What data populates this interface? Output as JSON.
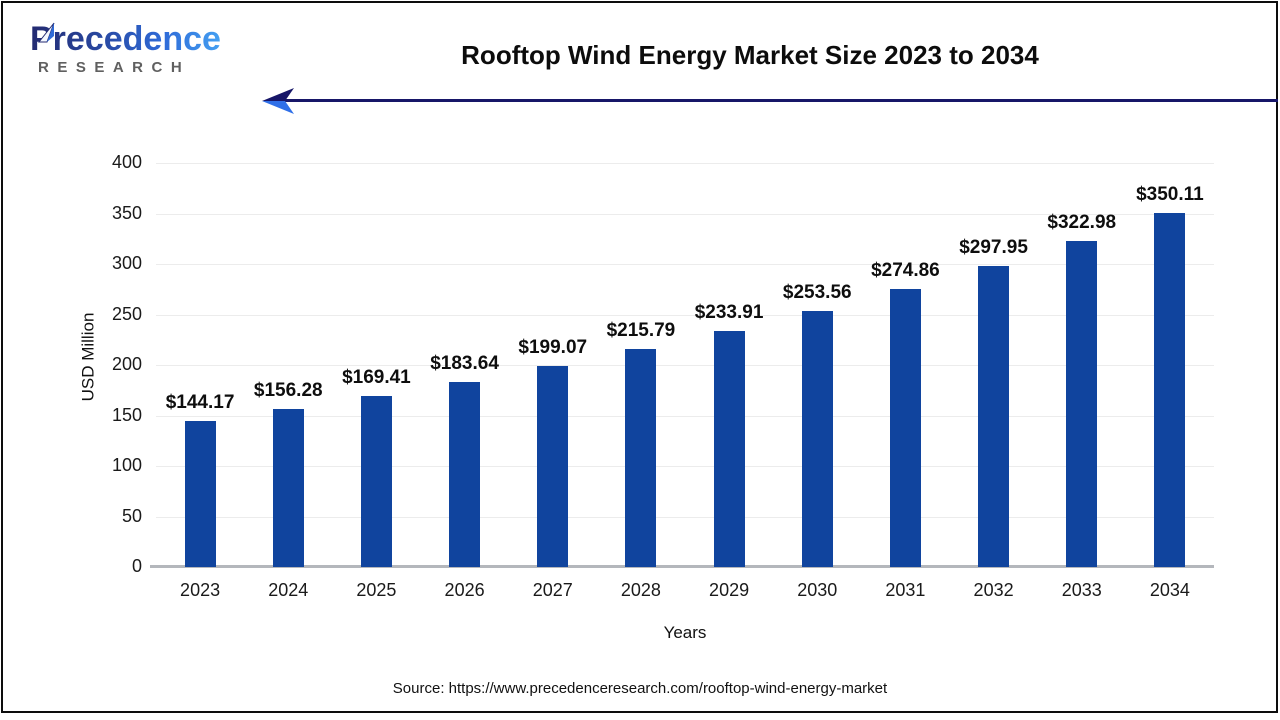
{
  "page": {
    "title": "Rooftop Wind Energy Market Size 2023 to 2034",
    "source": "Source: https://www.precedenceresearch.com/rooftop-wind-energy-market"
  },
  "logo": {
    "brand": "Precedence",
    "sub": "RESEARCH"
  },
  "colors": {
    "bar": "#10449e",
    "arrow_navy": "#171668",
    "arrow_blue": "#2f6fe8",
    "logo_navy": "#232a70",
    "logo_blue": "#3e82ef",
    "subtext_gray": "#606060",
    "gridline": "#ececec",
    "axis_gray": "#b4b7bc"
  },
  "chart_data": {
    "type": "bar",
    "title": "Rooftop Wind Energy Market Size 2023 to 2034",
    "categories": [
      "2023",
      "2024",
      "2025",
      "2026",
      "2027",
      "2028",
      "2029",
      "2030",
      "2031",
      "2032",
      "2033",
      "2034"
    ],
    "values": [
      144.17,
      156.28,
      169.41,
      183.64,
      199.07,
      215.79,
      233.91,
      253.56,
      274.86,
      297.95,
      322.98,
      350.11
    ],
    "value_labels": [
      "$144.17",
      "$156.28",
      "$169.41",
      "$183.64",
      "$199.07",
      "$215.79",
      "$233.91",
      "$253.56",
      "$274.86",
      "$297.95",
      "$322.98",
      "$350.11"
    ],
    "xlabel": "Years",
    "ylabel": "USD Million",
    "ylim": [
      0,
      400
    ],
    "yticks": [
      0,
      50,
      100,
      150,
      200,
      250,
      300,
      350,
      400
    ],
    "grid": true,
    "legend": "none",
    "bar_color": "#10449e"
  }
}
